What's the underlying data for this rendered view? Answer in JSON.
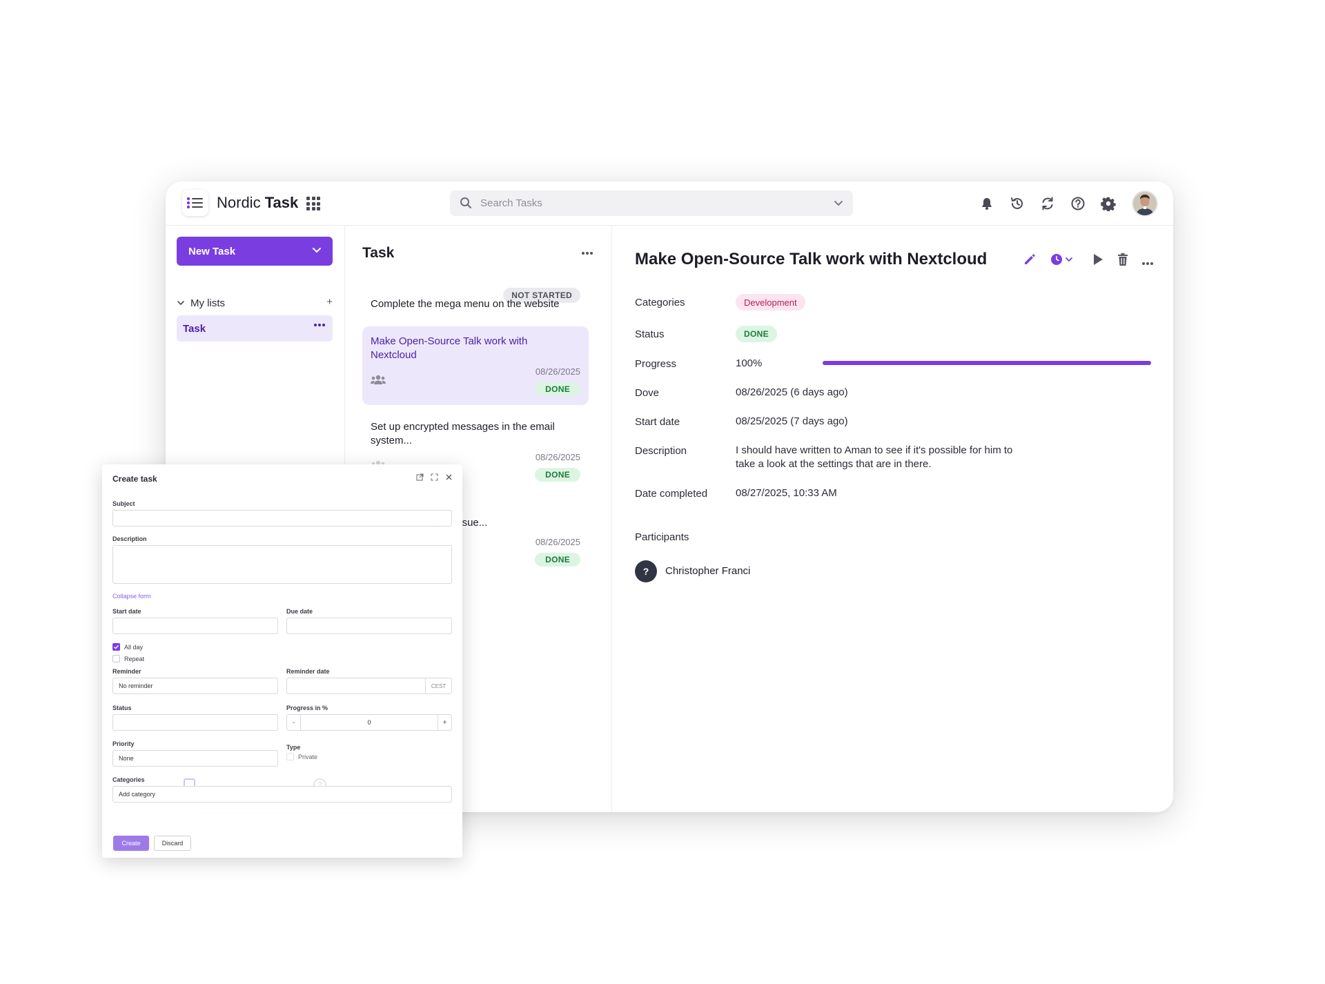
{
  "app": {
    "name_light": "Nordic",
    "name_bold": "Task"
  },
  "search": {
    "placeholder": "Search Tasks"
  },
  "toolbar_icons": [
    "bell-icon",
    "history-icon",
    "sync-icon",
    "help-icon",
    "gear-icon"
  ],
  "sidebar": {
    "new_task_label": "New Task",
    "my_lists_label": "My lists",
    "add_label": "+",
    "lists": [
      {
        "label": "Task"
      }
    ]
  },
  "tasklist": {
    "title": "Task",
    "tasks": [
      {
        "title": "Complete the mega menu on the website",
        "status": "NOT STARTED"
      },
      {
        "title": "Make Open-Source Talk work with Nextcloud",
        "date": "08/26/2025",
        "status": "DONE"
      },
      {
        "title": "Set up encrypted messages in the email system...",
        "date": "08/26/2025",
        "status": "DONE"
      },
      {
        "title": "the calendar sync issue...",
        "date": "08/26/2025",
        "status": "DONE"
      }
    ]
  },
  "details": {
    "title": "Make Open-Source Talk work with Nextcloud",
    "rows": {
      "categories_label": "Categories",
      "categories_value": "Development",
      "status_label": "Status",
      "status_value": "DONE",
      "progress_label": "Progress",
      "progress_value": "100%",
      "progress_fraction": 1.0,
      "dove_label": "Dove",
      "dove_value": "08/26/2025 (6 days ago)",
      "start_label": "Start date",
      "start_value": "08/25/2025 (7 days ago)",
      "description_label": "Description",
      "description_value": "I should have written to Aman to see if it's possible for him to take a look at the settings that are in there.",
      "completed_label": "Date completed",
      "completed_value": "08/27/2025, 10:33 AM",
      "participants_label": "Participants"
    },
    "participant": {
      "initial": "?",
      "name": "Christopher Franci"
    }
  },
  "dialog": {
    "title": "Create task",
    "subject_label": "Subject",
    "description_label": "Description",
    "collapse_label": "Collapse form",
    "start_label": "Start date",
    "due_label": "Due date",
    "allday_label": "All day",
    "repeat_label": "Repeat",
    "reminder_label": "Reminder",
    "reminder_value": "No reminder",
    "reminder_date_label": "Reminder date",
    "timezone": "CEST",
    "status_label": "Status",
    "progress_label": "Progress in %",
    "progress_value": "0",
    "minus": "-",
    "plus": "+",
    "priority_label": "Priority",
    "priority_value": "None",
    "type_label": "Type",
    "private_label": "Private",
    "categories_label": "Categories",
    "categories_placeholder": "Add category",
    "create_label": "Create",
    "discard_label": "Discard"
  },
  "colors": {
    "accent": "#7a3de0",
    "done_bg": "#dcf5e3",
    "done_text": "#1f7a3a",
    "category_bg": "#fde4ee",
    "category_text": "#b0215c"
  }
}
